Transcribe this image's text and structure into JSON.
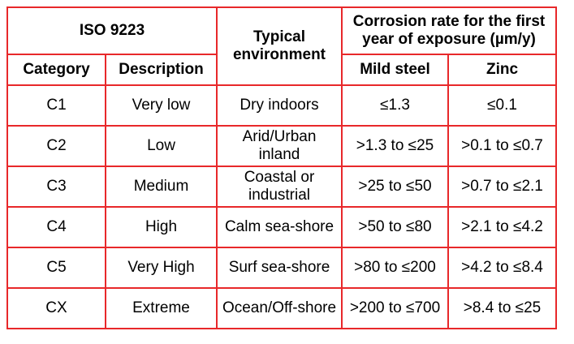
{
  "header": {
    "standard": "ISO 9223",
    "environment": "Typical environment",
    "corrosion": "Corrosion rate for the first year of exposure  (µm/y)",
    "category": "Category",
    "description": "Description",
    "mild_steel": "Mild steel",
    "zinc": "Zinc"
  },
  "rows": [
    {
      "category": "C1",
      "description": "Very low",
      "environment": "Dry indoors",
      "mild_steel": "≤1.3",
      "zinc": "≤0.1"
    },
    {
      "category": "C2",
      "description": "Low",
      "environment": "Arid/Urban inland",
      "mild_steel": ">1.3 to ≤25",
      "zinc": ">0.1 to ≤0.7"
    },
    {
      "category": "C3",
      "description": "Medium",
      "environment": "Coastal or industrial",
      "mild_steel": ">25 to ≤50",
      "zinc": ">0.7 to ≤2.1"
    },
    {
      "category": "C4",
      "description": "High",
      "environment": "Calm sea-shore",
      "mild_steel": ">50 to ≤80",
      "zinc": ">2.1 to ≤4.2"
    },
    {
      "category": "C5",
      "description": "Very High",
      "environment": "Surf sea-shore",
      "mild_steel": ">80 to ≤200",
      "zinc": ">4.2 to ≤8.4"
    },
    {
      "category": "CX",
      "description": "Extreme",
      "environment": "Ocean/Off-shore",
      "mild_steel": ">200 to ≤700",
      "zinc": ">8.4 to ≤25"
    }
  ]
}
